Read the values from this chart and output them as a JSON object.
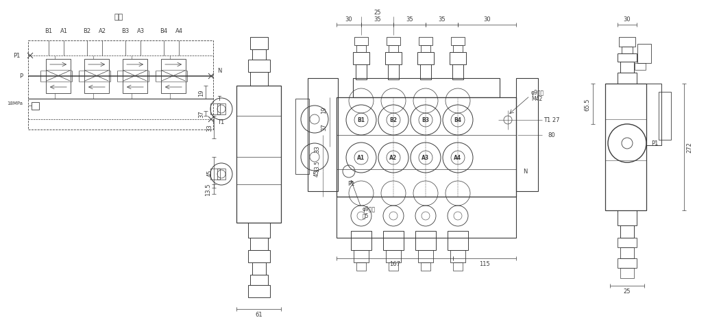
{
  "bg_color": "#ffffff",
  "line_color": "#3a3a3a",
  "font_size": 6.0,
  "title_cn": "图册",
  "schematic": {
    "port_pairs": [
      [
        "B1",
        "A1"
      ],
      [
        "B2",
        "A2"
      ],
      [
        "B3",
        "A3"
      ],
      [
        "B4",
        "A4"
      ]
    ],
    "left_labels": [
      "P1",
      "P",
      "18MPa"
    ],
    "right_labels": [
      "N",
      "T",
      "T1"
    ]
  },
  "front_dims_top": [
    "30",
    "35",
    "35",
    "35",
    "30"
  ],
  "front_dim_25": "25",
  "front_dims_bottom": [
    "167",
    "115"
  ],
  "front_dim_61": "61",
  "front_labels_B": [
    "B1",
    "B2",
    "B3",
    "B4"
  ],
  "front_labels_A": [
    "A1",
    "A2",
    "A3",
    "A4"
  ],
  "front_label_P1": "P1",
  "front_label_N": "N",
  "annotation_top_line1": "φ9螺纹",
  "annotation_top_line2": "M42",
  "annotation_bot_line1": "φ9螺纹",
  "annotation_bot_line2": "共5",
  "right_dims": [
    "65.5",
    "272",
    "25",
    "30"
  ],
  "right_label_P1": "P1",
  "right_inner_dims_T1": "T1 27",
  "right_inner_dims_80": "80"
}
